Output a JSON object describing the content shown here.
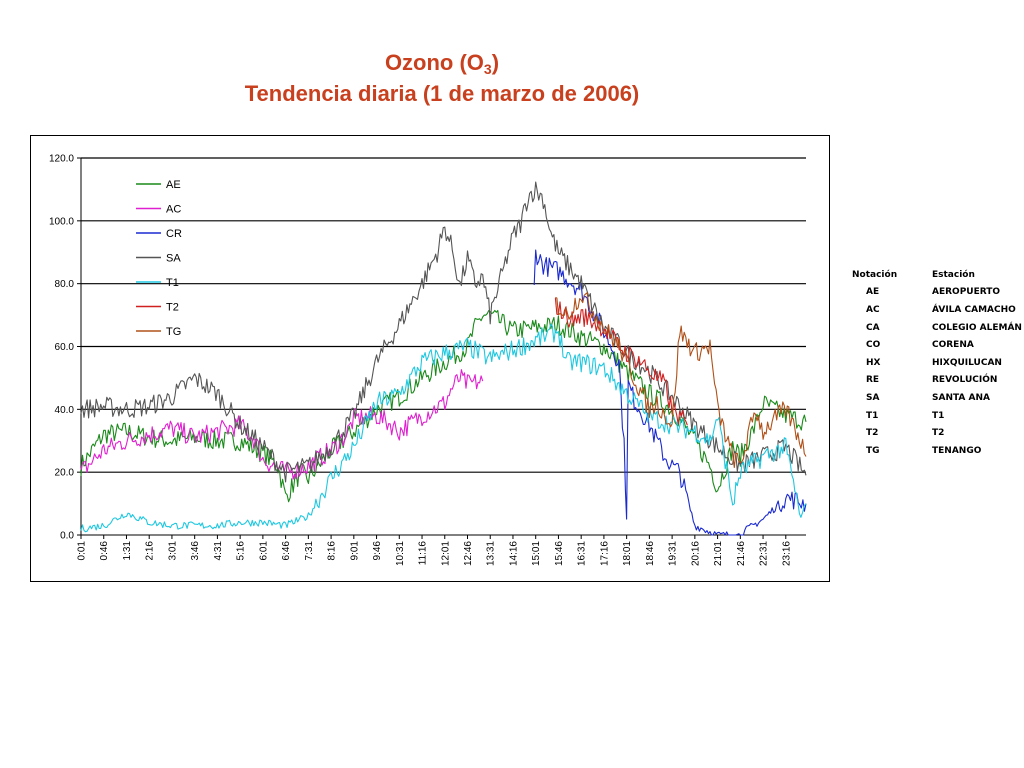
{
  "title_line1_prefix": "Ozono (O",
  "title_line1_sub": "3",
  "title_line1_suffix": ")",
  "title_line2": "Tendencia diaria (1 de marzo de 2006)",
  "stations_table": {
    "headers": [
      "Notación",
      "Estación"
    ],
    "rows": [
      [
        "AE",
        "AEROPUERTO"
      ],
      [
        "AC",
        "ÁVILA CAMACHO"
      ],
      [
        "CA",
        "COLEGIO ALEMÁN"
      ],
      [
        "CO",
        "CORENA"
      ],
      [
        "HX",
        "HIXQUILUCAN"
      ],
      [
        "RE",
        "REVOLUCIÓN"
      ],
      [
        "SA",
        "SANTA ANA"
      ],
      [
        "T1",
        "T1"
      ],
      [
        "T2",
        "T2"
      ],
      [
        "TG",
        "TENANGO"
      ]
    ]
  },
  "chart_data": {
    "type": "line",
    "title": "Ozono (O3) Tendencia diaria (1 de marzo de 2006)",
    "xlabel": "",
    "ylabel": "",
    "ylim": [
      0,
      120
    ],
    "yticks": [
      0,
      20,
      40,
      60,
      80,
      100,
      120
    ],
    "ytick_labels": [
      "0.0",
      "20.0",
      "40.0",
      "60.0",
      "80.0",
      "100.0",
      "120.0"
    ],
    "xlim_minutes": [
      1,
      1436
    ],
    "xtick_labels": [
      "0:01",
      "0:46",
      "1:31",
      "2:16",
      "3:01",
      "3:46",
      "4:31",
      "5:16",
      "6:01",
      "6:46",
      "7:31",
      "8:16",
      "9:01",
      "9:46",
      "10:31",
      "11:16",
      "12:01",
      "12:46",
      "13:31",
      "14:16",
      "15:01",
      "15:46",
      "16:31",
      "17:16",
      "18:01",
      "18:46",
      "19:31",
      "20:16",
      "21:01",
      "21:46",
      "22:31",
      "23:16"
    ],
    "grid": "horizontal",
    "legend_position": "upper-left",
    "series": [
      {
        "name": "AE",
        "color": "#1a8a1a",
        "x": [
          "0:01",
          "0:46",
          "1:31",
          "2:16",
          "3:01",
          "3:46",
          "4:31",
          "5:16",
          "6:01",
          "6:31",
          "6:46",
          "7:16",
          "7:31",
          "8:16",
          "9:01",
          "9:46",
          "10:31",
          "11:16",
          "12:01",
          "12:46",
          "13:01",
          "13:16",
          "13:31",
          "14:16",
          "15:01",
          "15:46",
          "16:31",
          "17:16",
          "18:01",
          "18:46",
          "19:31",
          "20:16",
          "20:46",
          "21:01",
          "21:31",
          "21:46",
          "22:16",
          "22:31",
          "23:16",
          "23:56"
        ],
        "y": [
          22,
          32,
          33,
          31,
          30,
          31,
          30,
          30,
          26,
          22,
          12,
          20,
          18,
          27,
          33,
          40,
          44,
          50,
          55,
          60,
          66,
          70,
          70,
          65,
          66,
          67,
          63,
          60,
          52,
          45,
          40,
          30,
          22,
          15,
          28,
          25,
          35,
          42,
          38,
          36
        ]
      },
      {
        "name": "AC",
        "color": "#e020d0",
        "x": [
          "0:01",
          "0:46",
          "1:31",
          "2:16",
          "3:01",
          "3:46",
          "4:31",
          "5:16",
          "5:46",
          "6:01",
          "6:46",
          "7:31",
          "8:16",
          "8:46",
          "9:01",
          "9:46",
          "10:16",
          "10:31",
          "11:16",
          "12:01",
          "12:16",
          "12:31",
          "12:46",
          "13:16"
        ],
        "y": [
          20,
          27,
          30,
          32,
          34,
          31,
          33,
          35,
          30,
          24,
          20,
          22,
          27,
          32,
          37,
          38,
          35,
          33,
          38,
          42,
          47,
          50,
          48,
          49
        ]
      },
      {
        "name": "CR",
        "color": "#1a2ad0",
        "x": [
          "14:58",
          "15:01",
          "15:16",
          "15:46",
          "16:31",
          "17:16",
          "17:46",
          "17:56",
          "18:01",
          "18:04",
          "18:16",
          "18:46",
          "19:16",
          "19:31",
          "19:46",
          "20:16",
          "20:31",
          "21:01",
          "21:46",
          "22:01",
          "22:31",
          "23:16",
          "23:56"
        ],
        "y": [
          78,
          90,
          86,
          84,
          78,
          65,
          55,
          28,
          6,
          48,
          43,
          35,
          25,
          22,
          20,
          3,
          2,
          0,
          0,
          2,
          5,
          12,
          10
        ]
      },
      {
        "name": "SA",
        "color": "#555555",
        "x": [
          "0:01",
          "0:46",
          "1:31",
          "2:16",
          "3:01",
          "3:46",
          "4:31",
          "5:16",
          "6:01",
          "6:46",
          "7:31",
          "8:16",
          "9:01",
          "9:46",
          "10:31",
          "11:16",
          "11:46",
          "12:01",
          "12:16",
          "12:31",
          "12:46",
          "13:01",
          "13:16",
          "13:31",
          "14:16",
          "14:31",
          "14:46",
          "15:01",
          "15:16",
          "15:31",
          "15:46",
          "16:31",
          "17:16",
          "18:01",
          "18:46",
          "19:31",
          "20:16",
          "21:01",
          "21:46",
          "22:31",
          "23:16",
          "23:56"
        ],
        "y": [
          40,
          41,
          40,
          41,
          44,
          50,
          45,
          35,
          28,
          20,
          22,
          28,
          38,
          55,
          67,
          80,
          90,
          98,
          91,
          79,
          88,
          80,
          82,
          70,
          95,
          99,
          108,
          110,
          107,
          96,
          90,
          80,
          66,
          58,
          52,
          44,
          35,
          28,
          22,
          25,
          28,
          19
        ]
      },
      {
        "name": "T1",
        "color": "#1fc8e0",
        "x": [
          "0:01",
          "0:46",
          "1:31",
          "2:16",
          "3:01",
          "3:46",
          "4:31",
          "5:16",
          "6:01",
          "6:46",
          "7:31",
          "8:16",
          "9:01",
          "9:46",
          "10:31",
          "11:16",
          "12:01",
          "12:46",
          "13:31",
          "15:46",
          "16:01",
          "16:31",
          "17:16",
          "18:01",
          "18:46",
          "19:31",
          "20:16",
          "20:46",
          "21:01",
          "21:31",
          "21:46",
          "22:31",
          "23:16",
          "23:46",
          "23:56"
        ],
        "y": [
          2,
          3,
          7,
          4,
          3,
          3,
          3,
          4,
          4,
          3,
          6,
          18,
          28,
          42,
          45,
          55,
          58,
          60,
          56,
          65,
          55,
          55,
          53,
          45,
          38,
          35,
          33,
          30,
          38,
          10,
          20,
          25,
          28,
          5,
          10
        ]
      },
      {
        "name": "T2",
        "color": "#d02020",
        "x": [
          "15:40",
          "15:46",
          "16:16",
          "16:31",
          "17:16",
          "17:46",
          "18:01",
          "18:31",
          "18:46",
          "19:16",
          "19:31",
          "20:01"
        ],
        "y": [
          74,
          72,
          68,
          70,
          66,
          60,
          58,
          55,
          52,
          48,
          40,
          35
        ]
      },
      {
        "name": "TG",
        "color": "#b05018",
        "x": [
          "15:40",
          "16:01",
          "16:16",
          "16:31",
          "17:16",
          "17:46",
          "18:16",
          "18:46",
          "19:01",
          "19:31",
          "19:46",
          "20:16",
          "20:46",
          "21:01",
          "21:16",
          "21:31",
          "21:46",
          "22:16",
          "22:31",
          "23:01",
          "23:16",
          "23:46",
          "23:56"
        ],
        "y": [
          74,
          70,
          73,
          77,
          66,
          60,
          50,
          40,
          42,
          35,
          65,
          58,
          60,
          40,
          32,
          25,
          22,
          40,
          33,
          38,
          40,
          30,
          25
        ]
      }
    ]
  }
}
